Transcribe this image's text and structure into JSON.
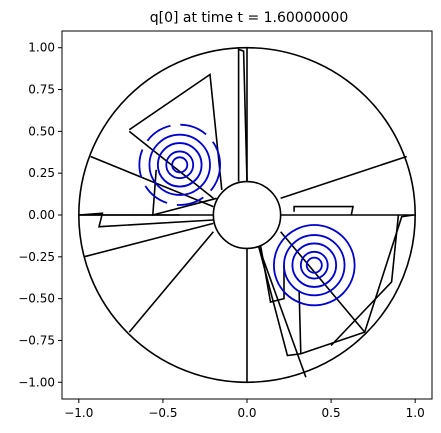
{
  "chart_data": {
    "type": "contour",
    "title": "q[0] at time t =     1.60000000",
    "xlim": [
      -1.1,
      1.1
    ],
    "ylim": [
      -1.1,
      1.1
    ],
    "xticks": [
      -1.0,
      -0.5,
      0.0,
      0.5,
      1.0
    ],
    "xtick_labels": [
      "−1.0",
      "−0.5",
      "0.0",
      "0.5",
      "1.0"
    ],
    "yticks": [
      1.0,
      0.75,
      0.5,
      0.25,
      0.0,
      -0.25,
      -0.5,
      -0.75,
      -1.0
    ],
    "ytick_labels": [
      "1.00",
      "0.75",
      "0.50",
      "0.25",
      "0.00",
      "−0.25",
      "−0.50",
      "−0.75",
      "−1.00"
    ],
    "grid": false,
    "outer_radius": 1.0,
    "inner_radius": 0.2,
    "mesh_color": "#000000",
    "contour_color": "#0000cc",
    "blobs": [
      {
        "center": [
          -0.4,
          0.3
        ],
        "radii": [
          0.24,
          0.18,
          0.13,
          0.08,
          0.045
        ]
      },
      {
        "center": [
          0.4,
          -0.3
        ],
        "radii": [
          0.24,
          0.18,
          0.13,
          0.08,
          0.045
        ]
      }
    ],
    "mesh_lines": [
      [
        [
          -0.4,
          0.0
        ],
        [
          -1.0,
          0.0
        ]
      ],
      [
        [
          0.0,
          -0.2
        ],
        [
          0.0,
          -1.0
        ]
      ],
      [
        [
          0.2,
          0.0
        ],
        [
          1.0,
          0.0
        ]
      ],
      [
        [
          0.0,
          0.2
        ],
        [
          0.0,
          1.0
        ]
      ],
      [
        [
          -0.2,
          0.1
        ],
        [
          -0.7,
          0.5
        ]
      ],
      [
        [
          -0.2,
          -0.05
        ],
        [
          -0.97,
          -0.25
        ]
      ],
      [
        [
          -0.2,
          -0.1
        ],
        [
          -0.7,
          -0.7
        ]
      ],
      [
        [
          0.2,
          0.1
        ],
        [
          0.95,
          0.35
        ]
      ],
      [
        [
          0.2,
          -0.1
        ],
        [
          0.7,
          -0.7
        ]
      ],
      [
        [
          -0.2,
          0.05
        ],
        [
          -0.93,
          0.35
        ]
      ],
      [
        [
          0.07,
          -0.19
        ],
        [
          0.35,
          -0.97
        ]
      ]
    ],
    "patch_polylines": [
      [
        [
          -0.15,
          0.15
        ],
        [
          -0.22,
          0.84
        ],
        [
          -0.7,
          0.51
        ]
      ],
      [
        [
          -0.18,
          0.1
        ],
        [
          -0.56,
          0.0
        ],
        [
          -0.54,
          0.27
        ]
      ],
      [
        [
          -0.2,
          0.0
        ],
        [
          -1.0,
          0.0
        ],
        [
          -0.86,
          0.01
        ],
        [
          -0.88,
          -0.07
        ],
        [
          -0.2,
          -0.03
        ]
      ],
      [
        [
          -0.05,
          0.2
        ],
        [
          -0.05,
          0.99
        ],
        [
          -0.02,
          0.98
        ],
        [
          0.0,
          0.2
        ]
      ],
      [
        [
          0.28,
          0.02
        ],
        [
          0.28,
          0.05
        ],
        [
          0.63,
          0.05
        ],
        [
          0.62,
          0.0
        ]
      ],
      [
        [
          0.08,
          -0.18
        ],
        [
          0.14,
          -0.52
        ],
        [
          0.22,
          -0.5
        ],
        [
          0.22,
          -0.3
        ]
      ],
      [
        [
          0.07,
          -0.19
        ],
        [
          0.24,
          -0.84
        ],
        [
          0.32,
          -0.83
        ],
        [
          0.31,
          -0.45
        ]
      ],
      [
        [
          0.32,
          -0.83
        ],
        [
          0.7,
          -0.7
        ],
        [
          0.92,
          -0.01
        ],
        [
          0.99,
          0.0
        ]
      ],
      [
        [
          0.5,
          -0.78
        ],
        [
          0.86,
          -0.4
        ],
        [
          0.9,
          0.0
        ]
      ]
    ]
  }
}
